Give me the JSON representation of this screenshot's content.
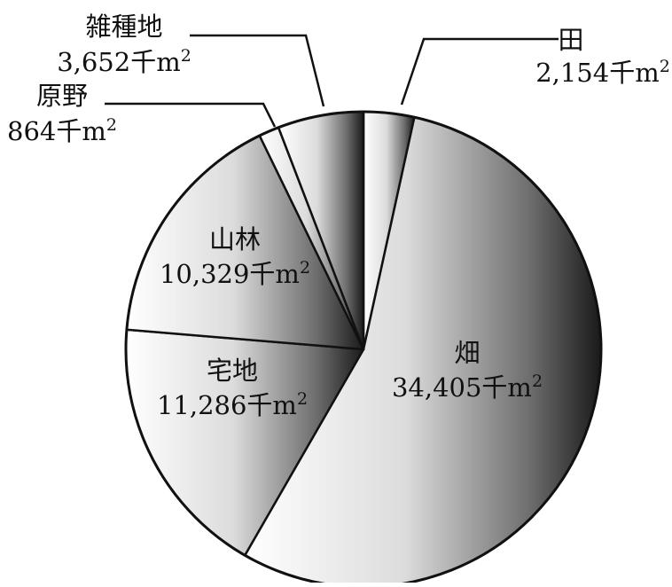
{
  "chart_data": {
    "type": "pie",
    "title": "",
    "unit": "千m²",
    "slices": [
      {
        "label": "田",
        "value": 2154,
        "value_text": "2,154千m²",
        "label_position": "outside-top-right"
      },
      {
        "label": "畑",
        "value": 34405,
        "value_text": "34,405千m²",
        "label_position": "inside"
      },
      {
        "label": "宅地",
        "value": 11286,
        "value_text": "11,286千m²",
        "label_position": "inside"
      },
      {
        "label": "山林",
        "value": 10329,
        "value_text": "10,329千m²",
        "label_position": "inside"
      },
      {
        "label": "原野",
        "value": 864,
        "value_text": "864千m²",
        "label_position": "outside-top-left"
      },
      {
        "label": "雑種地",
        "value": 3652,
        "value_text": "3,652千m²",
        "label_position": "outside-top-left"
      }
    ],
    "start_angle": "12 o'clock",
    "direction": "clockwise",
    "fill": "horizontal-gradient",
    "gradient_colors": [
      "#ffffff",
      "#1a1a1a"
    ],
    "stroke_color": "#111111",
    "legend": "none",
    "grid": false
  }
}
